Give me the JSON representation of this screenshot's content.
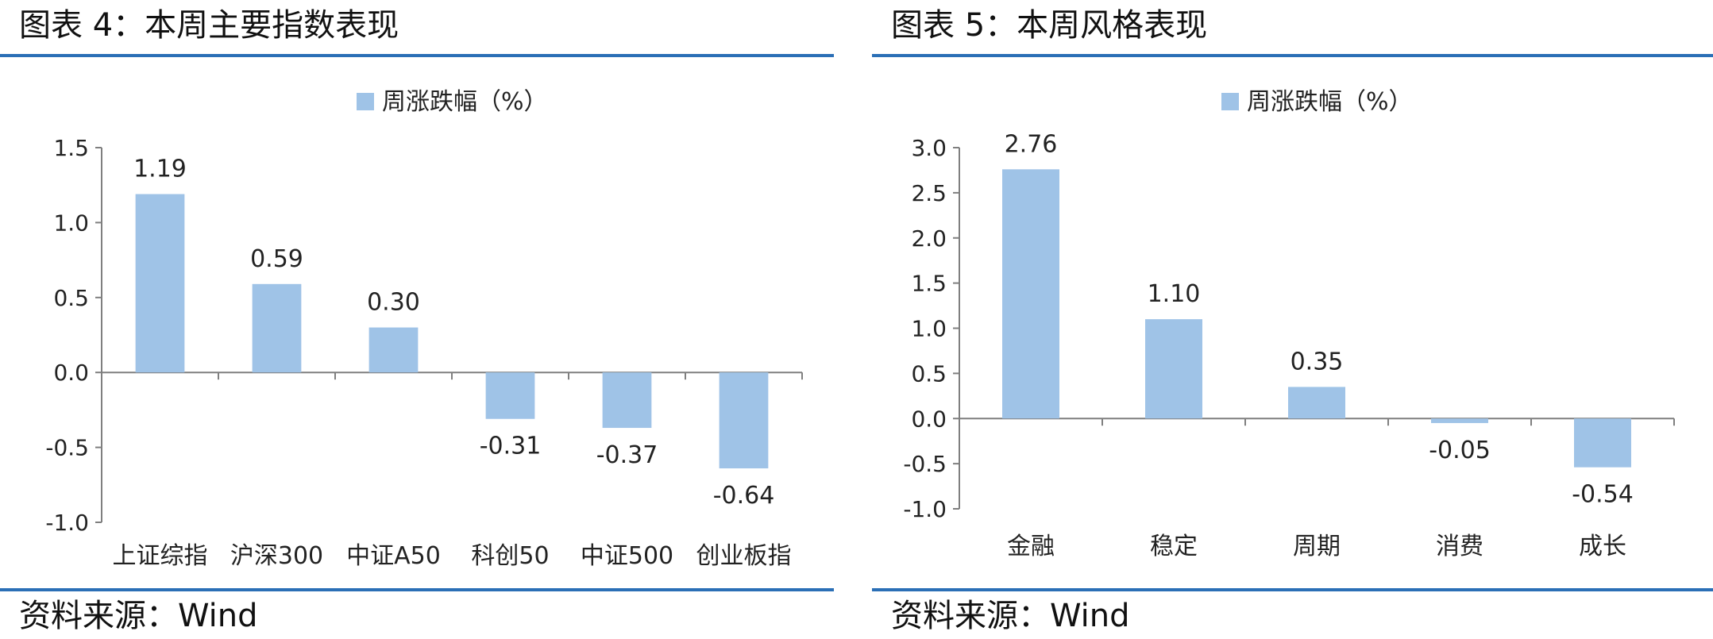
{
  "panels": [
    {
      "title": "图表 4：本周主要指数表现",
      "source": "资料来源：Wind",
      "chart_data": {
        "type": "bar",
        "categories": [
          "上证综指",
          "沪深300",
          "中证A50",
          "科创50",
          "中证500",
          "创业板指"
        ],
        "series": [
          {
            "name": "周涨跌幅（%）",
            "values": [
              1.19,
              0.59,
              0.3,
              -0.31,
              -0.37,
              -0.64
            ],
            "labels": [
              "1.19",
              "0.59",
              "0.30",
              "-0.31",
              "-0.37",
              "-0.64"
            ]
          }
        ],
        "yticks": [
          "1.5",
          "1.0",
          "0.5",
          "0.0",
          "-0.5",
          "-1.0"
        ],
        "ylim": [
          -1.0,
          1.5
        ],
        "legend_position": "top-center",
        "grid": false,
        "bar_color": "#9fc3e7"
      }
    },
    {
      "title": "图表 5：本周风格表现",
      "source": "资料来源：Wind",
      "chart_data": {
        "type": "bar",
        "categories": [
          "金融",
          "稳定",
          "周期",
          "消费",
          "成长"
        ],
        "series": [
          {
            "name": "周涨跌幅（%）",
            "values": [
              2.76,
              1.1,
              0.35,
              -0.05,
              -0.54
            ],
            "labels": [
              "2.76",
              "1.10",
              "0.35",
              "-0.05",
              "-0.54"
            ]
          }
        ],
        "yticks": [
          "3.0",
          "2.5",
          "2.0",
          "1.5",
          "1.0",
          "0.5",
          "0.0",
          "-0.5",
          "-1.0"
        ],
        "ylim": [
          -1.0,
          3.0
        ],
        "legend_position": "top-center",
        "grid": false,
        "bar_color": "#9fc3e7"
      }
    }
  ]
}
